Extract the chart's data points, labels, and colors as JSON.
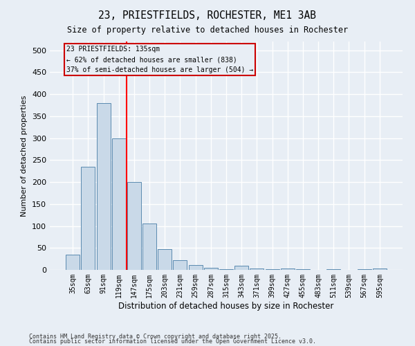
{
  "title1": "23, PRIESTFIELDS, ROCHESTER, ME1 3AB",
  "title2": "Size of property relative to detached houses in Rochester",
  "xlabel": "Distribution of detached houses by size in Rochester",
  "ylabel": "Number of detached properties",
  "categories": [
    "35sqm",
    "63sqm",
    "91sqm",
    "119sqm",
    "147sqm",
    "175sqm",
    "203sqm",
    "231sqm",
    "259sqm",
    "287sqm",
    "315sqm",
    "343sqm",
    "371sqm",
    "399sqm",
    "427sqm",
    "455sqm",
    "483sqm",
    "511sqm",
    "539sqm",
    "567sqm",
    "595sqm"
  ],
  "values": [
    35,
    235,
    380,
    300,
    200,
    105,
    48,
    22,
    11,
    4,
    1,
    10,
    3,
    1,
    3,
    1,
    0,
    1,
    0,
    1,
    3
  ],
  "bar_color": "#c9d9e8",
  "bar_edge_color": "#5a8ab0",
  "background_color": "#e8eef5",
  "grid_color": "#ffffff",
  "red_line_x": 3.5,
  "annotation_line1": "23 PRIESTFIELDS: 135sqm",
  "annotation_line2": "← 62% of detached houses are smaller (838)",
  "annotation_line3": "37% of semi-detached houses are larger (504) →",
  "annotation_box_color": "#cc0000",
  "ylim": [
    0,
    520
  ],
  "yticks": [
    0,
    50,
    100,
    150,
    200,
    250,
    300,
    350,
    400,
    450,
    500
  ],
  "footer1": "Contains HM Land Registry data © Crown copyright and database right 2025.",
  "footer2": "Contains public sector information licensed under the Open Government Licence v3.0."
}
